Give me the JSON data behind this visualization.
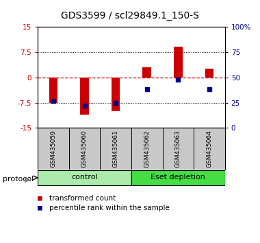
{
  "title": "GDS3599 / scl29849.1_150-S",
  "samples": [
    "GSM435059",
    "GSM435060",
    "GSM435061",
    "GSM435062",
    "GSM435063",
    "GSM435064"
  ],
  "red_bars": [
    -7.5,
    -11.0,
    -10.0,
    3.0,
    9.0,
    2.5
  ],
  "blue_dots_right": [
    27,
    22,
    25,
    38,
    48,
    38
  ],
  "ylim_left": [
    -15,
    15
  ],
  "ylim_right": [
    0,
    100
  ],
  "yticks_left": [
    -15,
    -7.5,
    0,
    7.5,
    15
  ],
  "yticks_right": [
    0,
    25,
    50,
    75,
    100
  ],
  "yticklabels_right": [
    "0",
    "25",
    "50",
    "75",
    "100%"
  ],
  "protocol_groups": [
    {
      "label": "control",
      "start": 0,
      "end": 3,
      "color": "#aaeaaa"
    },
    {
      "label": "Eset depletion",
      "start": 3,
      "end": 6,
      "color": "#44dd44"
    }
  ],
  "bar_color": "#CC0000",
  "dot_color": "#00008B",
  "dashed_zero_color": "#CC0000",
  "bg_sample_labels": "#C8C8C8",
  "title_fontsize": 10,
  "tick_fontsize": 7.5,
  "sample_fontsize": 6.5,
  "legend_fontsize": 7.5
}
